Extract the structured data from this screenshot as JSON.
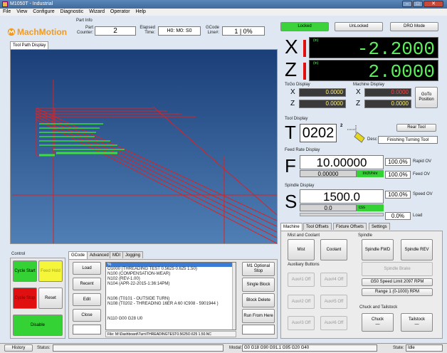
{
  "window": {
    "title": "M1050T - Industrial",
    "min": "–",
    "max": "□",
    "close": "✕"
  },
  "menu": [
    "File",
    "View",
    "Configure",
    "Diagnostic",
    "Wizard",
    "Operator",
    "Help"
  ],
  "logo": "MachMotion",
  "part_info": {
    "heading": "Part Info",
    "part_counter_label": "Part Counter:",
    "part_counter": "2",
    "elapsed_label": "Elapsed Time:",
    "elapsed": "H0: M0: S0",
    "gcode_label": "GCode Line#:",
    "gcode_line": "1 | 0%"
  },
  "top_buttons": {
    "locked": "Locked",
    "unlocked": "UnLocked",
    "dro_mode": "DRO Mode"
  },
  "toolpath": {
    "tab": "Tool Path Display"
  },
  "dro": {
    "x_label": "X",
    "x_unit": "(in)",
    "x": "-2.2000",
    "z_label": "Z",
    "z_unit": "(in)",
    "z": "2.0000"
  },
  "togo": {
    "heading": "ToGo Display",
    "x": "0.0000",
    "z": "0.0000"
  },
  "machine": {
    "heading": "Machine Display",
    "x": "0.0000",
    "z": "0.0000",
    "goto": "GoTo Position"
  },
  "tool": {
    "heading": "Tool Display",
    "letter": "T",
    "number": "0202",
    "index": "2",
    "rear_tool": "Rear Tool",
    "desc_label": "Desc",
    "desc": "Finishing Turning Tool"
  },
  "feed": {
    "heading": "Feed Rate Display",
    "letter": "F",
    "value": "10.00000",
    "actual": "0.00000",
    "unit": "inch/rev",
    "rapid_ov": "100.0%",
    "rapid_label": "Rapid OV",
    "feed_ov": "100.0%",
    "feed_label": "Feed OV"
  },
  "spindle": {
    "heading": "Spindle Display",
    "letter": "S",
    "value": "1500.0",
    "actual": "0.0",
    "unit": "css",
    "speed_ov": "100.0%",
    "speed_label": "Speed OV",
    "load": "0.0%",
    "load_label": "Load"
  },
  "right_tabs": [
    "Machine",
    "Tool Offsets",
    "Fixture Offsets",
    "Settings"
  ],
  "mist_coolant": {
    "heading": "Mist and Coolant",
    "mist": "Mist",
    "coolant": "Coolant"
  },
  "spindle_ctrl": {
    "heading": "Spindle",
    "fwd": "Spindle FWD",
    "rev": "Spindle REV",
    "brake": "Spindle Brake",
    "g50": "G50 Speed Limit 2097 RPM",
    "range": "Range 1 (0-1000) RPM"
  },
  "aux": {
    "heading": "Auxiliary Buttons",
    "b1": "Aux#1 Off",
    "b2": "Aux#2 Off",
    "b3": "Aux#3 Off",
    "b4": "Aux#4 Off",
    "b5": "Aux#5 Off",
    "b6": "Aux#6 Off"
  },
  "chuck": {
    "heading": "Chuck and Tailstock",
    "chuck": "Chuck",
    "chuck_state": "—",
    "tail": "Tailstock",
    "tail_state": "—"
  },
  "control": {
    "heading": "Control",
    "cycle_start": "Cycle Start",
    "feed_hold": "Feed Hold",
    "cycle_stop": "Cycle Stop",
    "reset": "Reset",
    "disable": "Disable"
  },
  "gcode_tabs": [
    "GCode",
    "Advanced",
    "MDI",
    "Jogging"
  ],
  "gcode_buttons": {
    "load": "Load",
    "recent": "Recent",
    "edit": "Edit",
    "close": "Close"
  },
  "gcode_lines": [
    "%",
    "O1000 (THREADING TEST 0.5625 0.625 1.50)",
    "N100 (COMPENSATION-WEAR)",
    "N102 (REV-1.00)",
    "N104 (APR-22-2015-1:36:14PM)",
    "",
    "",
    "N106 (T0101 - OUTSIDE TURN)",
    "N108 (T0202 - THREADING 16ER A 60 IC908 - 5901944 )",
    "",
    "",
    "N110 G00 G28 U0"
  ],
  "file": "File: M:\\Dashboard\\Turn\\THREADINGTEST0.5625O.625 1.50.NC",
  "side_buttons": {
    "m1": "M1 Optional Stop",
    "single": "Single Block",
    "block_delete": "Block Delete",
    "run_from": "Run From Here"
  },
  "status": {
    "history": "History",
    "status_label": "Status:",
    "modal_label": "Modal:",
    "modal": "G0 G18 G90 G91.1 G95 G20 G40",
    "state_label": "State:",
    "state": "Idle"
  },
  "colors": {
    "green_btn": "#35d235",
    "yellow_btn": "#f5f53a",
    "red_btn": "#e01010",
    "dro_green": "#5cf05c",
    "toolpath_bg_top": "#1b3f78",
    "toolpath_bg_bottom": "#4f7fb5"
  }
}
